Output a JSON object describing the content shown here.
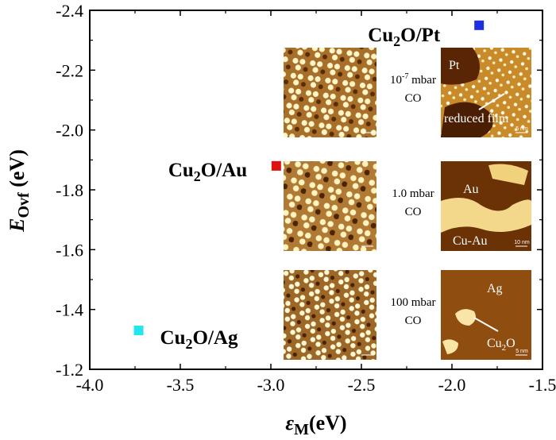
{
  "chart_data": {
    "type": "scatter",
    "xlabel": {
      "symbol": "ε",
      "sub": "M",
      "unit": "(eV)"
    },
    "ylabel": {
      "symbol": "E",
      "sub": "Ovf",
      "unit": "(eV)"
    },
    "xlim": [
      -4.0,
      -1.5
    ],
    "ylim": [
      -1.2,
      -2.4
    ],
    "xticks": [
      "-4.0",
      "-3.5",
      "-3.0",
      "-2.5",
      "-2.0",
      "-1.5"
    ],
    "yticks": [
      "-2.4",
      "-2.2",
      "-2.0",
      "-1.8",
      "-1.6",
      "-1.4",
      "-1.2"
    ],
    "points": [
      {
        "x": -1.85,
        "y": -2.35,
        "color": "#1f2ee0",
        "label": {
          "a": "Cu",
          "sub": "2",
          "b": "O/Pt"
        }
      },
      {
        "x": -2.97,
        "y": -1.88,
        "color": "#e01010",
        "label": {
          "a": "Cu",
          "sub": "2",
          "b": "O/Au"
        }
      },
      {
        "x": -3.73,
        "y": -1.33,
        "color": "#22e6ee",
        "label": {
          "a": "Cu",
          "sub": "2",
          "b": "O/Ag"
        }
      }
    ],
    "insets": [
      {
        "condition": {
          "pressure_pre": "10",
          "pressure_exp": "-7",
          "pressure_post": " mbar",
          "gas": "CO"
        },
        "stm_labels": [
          {
            "text": "Pt"
          },
          {
            "text": "reduced film"
          }
        ],
        "scale_text": "5 nm"
      },
      {
        "condition": {
          "pressure_pre": "1.0",
          "pressure_exp": "",
          "pressure_post": " mbar",
          "gas": "CO"
        },
        "stm_labels": [
          {
            "text": "Au"
          },
          {
            "text": "Cu-Au"
          }
        ],
        "scale_text": "10 nm"
      },
      {
        "condition": {
          "pressure_pre": "100",
          "pressure_exp": "",
          "pressure_post": " mbar",
          "gas": "CO"
        },
        "stm_labels": [
          {
            "text": "Ag"
          },
          {
            "text": "Cu",
            "sub": "2",
            "after": "O"
          }
        ],
        "scale_text": "5 nm"
      }
    ]
  }
}
